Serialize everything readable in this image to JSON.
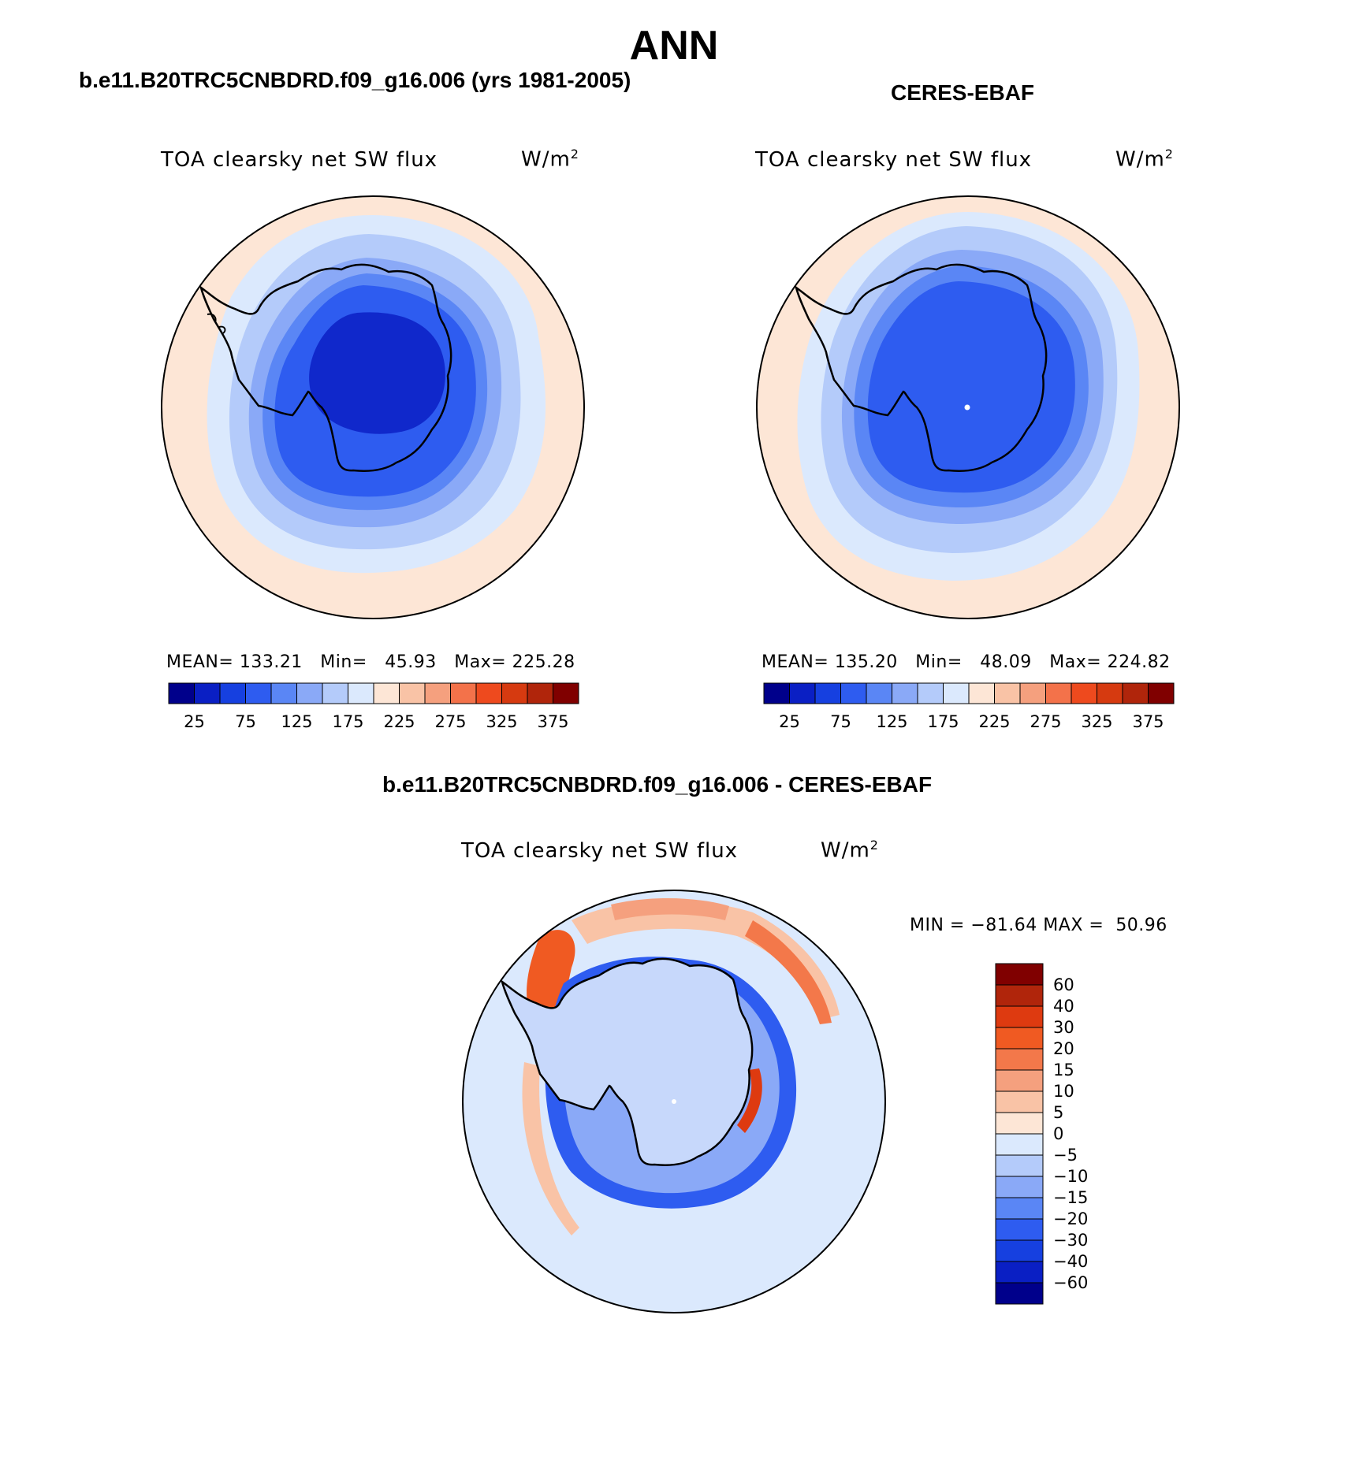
{
  "page": {
    "title": "ANN"
  },
  "panels": [
    {
      "title": "b.e11.B20TRC5CNBDRD.f09_g16.006 (yrs 1981-2005)",
      "variable": "TOA clearsky net SW flux",
      "units_base": "W/m",
      "units_exp": "2",
      "stats": {
        "mean_label": "MEAN=",
        "mean": "133.21",
        "min_label": "Min=",
        "min": "45.93",
        "max_label": "Max=",
        "max": "225.28"
      },
      "colorbar_labels": [
        "25",
        "75",
        "125",
        "175",
        "225",
        "275",
        "325",
        "375"
      ]
    },
    {
      "title": "CERES-EBAF",
      "variable": "TOA clearsky net SW flux",
      "units_base": "W/m",
      "units_exp": "2",
      "stats": {
        "mean_label": "MEAN=",
        "mean": "135.20",
        "min_label": "Min=",
        "min": "48.09",
        "max_label": "Max=",
        "max": "224.82"
      },
      "colorbar_labels": [
        "25",
        "75",
        "125",
        "175",
        "225",
        "275",
        "325",
        "375"
      ]
    },
    {
      "title": "b.e11.B20TRC5CNBDRD.f09_g16.006 - CERES-EBAF",
      "variable": "TOA clearsky net SW flux",
      "units_base": "W/m",
      "units_exp": "2",
      "stats": {
        "min_label": "MIN =",
        "min": "−81.64",
        "max_label": "MAX =",
        "max": "50.96"
      },
      "colorbar_labels": [
        "60",
        "40",
        "30",
        "20",
        "15",
        "10",
        "5",
        "0",
        "−5",
        "−10",
        "−15",
        "−20",
        "−30",
        "−40",
        "−60"
      ]
    }
  ],
  "colors": {
    "abs_scale": [
      "#00008b",
      "#0a1fc4",
      "#1640e0",
      "#2e5cf0",
      "#5a86f5",
      "#8aa9f7",
      "#b4cbfa",
      "#dbe9fd",
      "#fde6d6",
      "#f9c3a6",
      "#f5a07e",
      "#f3724a",
      "#ee4a1e",
      "#d63a10",
      "#b0250b",
      "#800000"
    ],
    "diff_scale_top_to_bottom": [
      "#800000",
      "#b0250b",
      "#de3a10",
      "#f05a22",
      "#f3784a",
      "#f5a07e",
      "#f9c3a6",
      "#fde6d6",
      "#dbe9fd",
      "#b4cbfa",
      "#8aa9f7",
      "#5a86f5",
      "#2e5cf0",
      "#1640e0",
      "#0a1fc4",
      "#00008b"
    ],
    "coastline": "#000000"
  },
  "chart_data": {
    "type": "heatmap",
    "projection": "south polar stereographic",
    "abs_contour_levels": [
      25,
      50,
      75,
      100,
      125,
      150,
      175,
      200,
      225,
      250,
      275,
      300,
      325,
      350,
      375
    ],
    "diff_contour_levels": [
      -60,
      -40,
      -30,
      -20,
      -15,
      -10,
      -5,
      0,
      5,
      10,
      15,
      20,
      30,
      40,
      60
    ]
  }
}
